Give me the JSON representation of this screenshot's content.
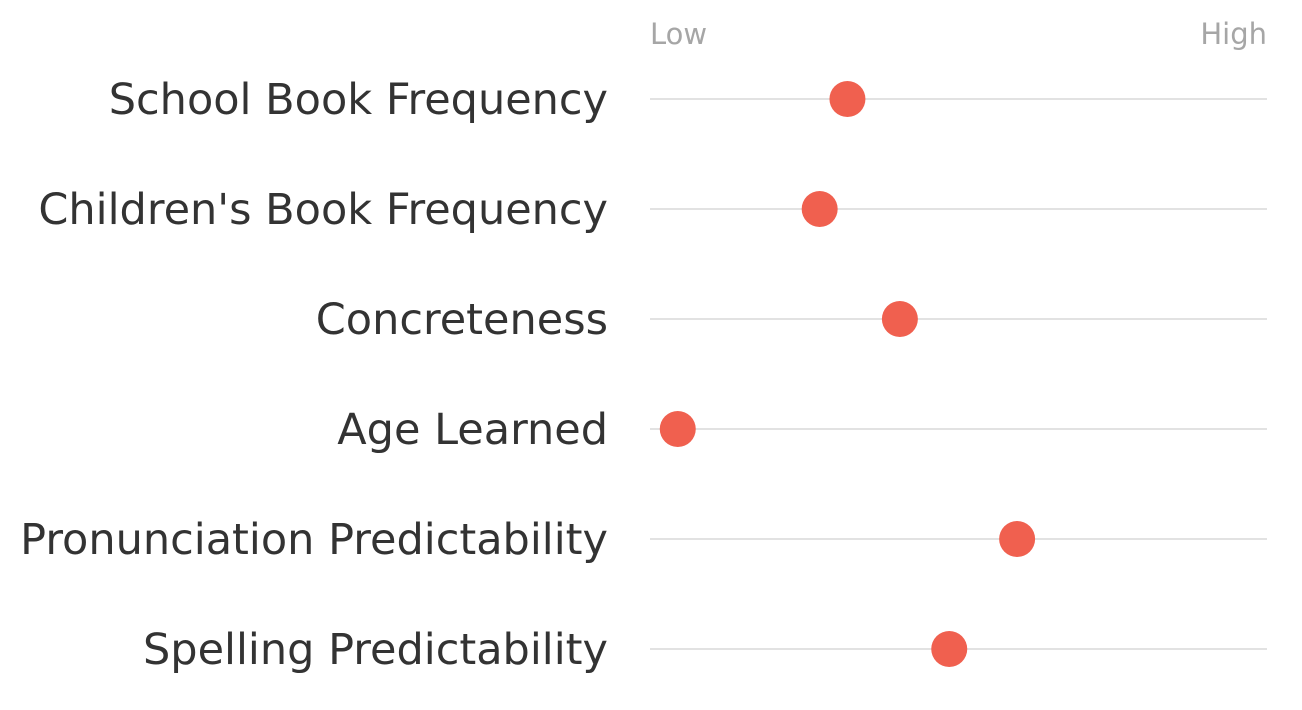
{
  "chart_data": {
    "type": "scatter",
    "title": "",
    "xlabel": "",
    "ylabel": "",
    "scale": {
      "low_label": "Low",
      "high_label": "High",
      "xlim": [
        0,
        1
      ]
    },
    "grid": false,
    "legend": "none",
    "dot_color": "#f0604f",
    "track_color": "#d9d9d9",
    "categories": [
      "School Book Frequency",
      "Children's Book Frequency",
      "Concreteness",
      "Age Learned",
      "Pronunciation Predictability",
      "Spelling Predictability"
    ],
    "values": [
      0.32,
      0.275,
      0.405,
      0.045,
      0.595,
      0.485
    ]
  }
}
